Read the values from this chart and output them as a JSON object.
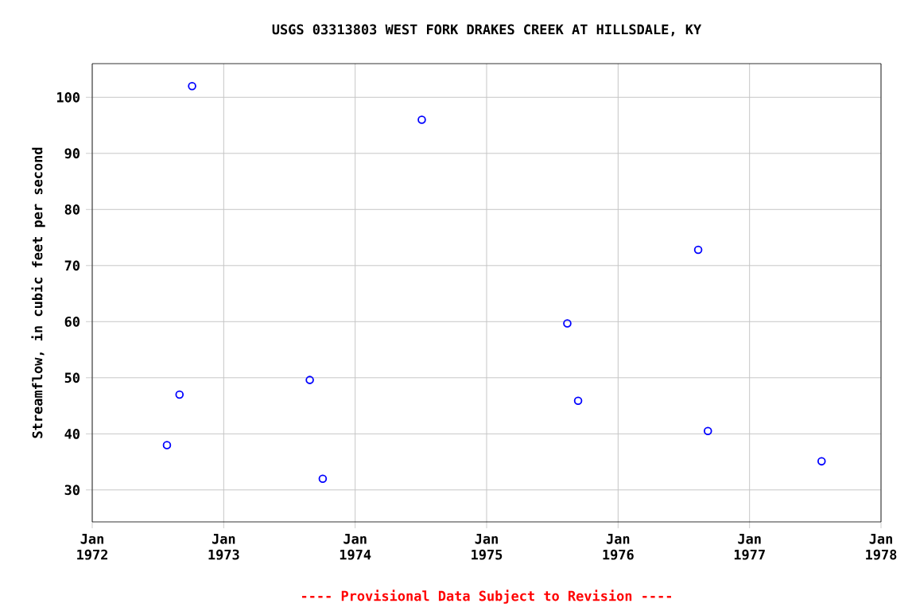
{
  "chart_data": {
    "type": "scatter",
    "title": "USGS 03313803 WEST FORK DRAKES CREEK AT HILLSDALE, KY",
    "ylabel": "Streamflow, in cubic feet per second",
    "annotations": [
      "---- Provisional Data Subject to Revision ----"
    ],
    "series": [
      {
        "color": "#0000ff",
        "x": [
          "1972-07-27",
          "1972-08-31",
          "1972-10-05",
          "1973-08-28",
          "1973-10-03",
          "1974-07-05",
          "1975-08-13",
          "1975-09-12",
          "1976-08-11",
          "1976-09-07",
          "1977-07-20"
        ],
        "values": [
          38,
          47,
          102,
          49.6,
          32,
          96,
          59.7,
          45.9,
          72.8,
          40.5,
          35.1
        ]
      }
    ],
    "xlim": [
      "1972-01-01",
      "1978-01-01"
    ],
    "ylim": [
      24.3,
      106
    ],
    "xticks": [
      {
        "value": "1972-01-01",
        "label": "Jan 1972"
      },
      {
        "value": "1973-01-01",
        "label": "Jan 1973"
      },
      {
        "value": "1974-01-01",
        "label": "Jan 1974"
      },
      {
        "value": "1975-01-01",
        "label": "Jan 1975"
      },
      {
        "value": "1976-01-01",
        "label": "Jan 1976"
      },
      {
        "value": "1977-01-01",
        "label": "Jan 1977"
      },
      {
        "value": "1978-01-01",
        "label": "Jan 1978"
      }
    ],
    "yticks": [
      30,
      40,
      50,
      60,
      70,
      80,
      90,
      100
    ],
    "grid": true,
    "marker": "circle"
  }
}
